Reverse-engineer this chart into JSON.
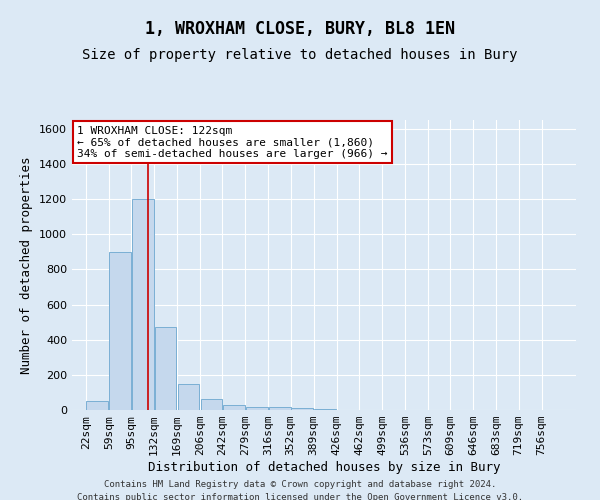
{
  "title": "1, WROXHAM CLOSE, BURY, BL8 1EN",
  "subtitle": "Size of property relative to detached houses in Bury",
  "xlabel": "Distribution of detached houses by size in Bury",
  "ylabel": "Number of detached properties",
  "footer1": "Contains HM Land Registry data © Crown copyright and database right 2024.",
  "footer2": "Contains public sector information licensed under the Open Government Licence v3.0.",
  "categories": [
    "22sqm",
    "59sqm",
    "95sqm",
    "132sqm",
    "169sqm",
    "206sqm",
    "242sqm",
    "279sqm",
    "316sqm",
    "352sqm",
    "389sqm",
    "426sqm",
    "462sqm",
    "499sqm",
    "536sqm",
    "573sqm",
    "609sqm",
    "646sqm",
    "683sqm",
    "719sqm",
    "756sqm"
  ],
  "values": [
    50,
    900,
    1200,
    470,
    150,
    60,
    30,
    17,
    15,
    10,
    5,
    0,
    0,
    0,
    0,
    0,
    0,
    0,
    0,
    0,
    0
  ],
  "bar_color": "#c5d8ed",
  "bar_edge_color": "#7aafd4",
  "background_color": "#dce9f5",
  "annotation_line1": "1 WROXHAM CLOSE: 122sqm",
  "annotation_line2": "← 65% of detached houses are smaller (1,860)",
  "annotation_line3": "34% of semi-detached houses are larger (966) →",
  "annotation_box_color": "#ffffff",
  "annotation_border_color": "#cc0000",
  "vline_x": 122,
  "vline_color": "#cc0000",
  "ylim": [
    0,
    1650
  ],
  "yticks": [
    0,
    200,
    400,
    600,
    800,
    1000,
    1200,
    1400,
    1600
  ],
  "title_fontsize": 12,
  "subtitle_fontsize": 10,
  "axis_label_fontsize": 9,
  "tick_fontsize": 8,
  "annot_fontsize": 8,
  "grid_color": "#ffffff",
  "bin_starts": [
    22,
    59,
    95,
    132,
    169,
    206,
    242,
    279,
    316,
    352,
    389,
    426,
    462,
    499,
    536,
    573,
    609,
    646,
    683,
    719,
    756
  ],
  "bin_width": 37
}
